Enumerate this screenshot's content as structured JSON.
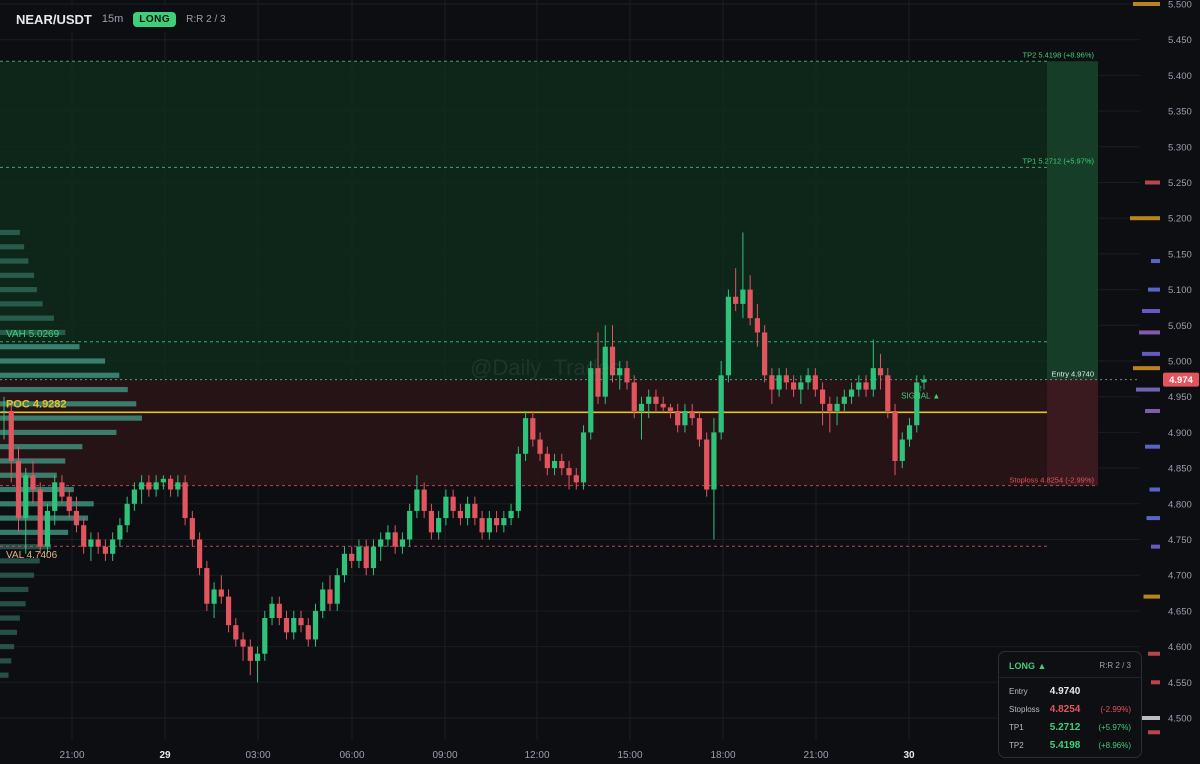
{
  "header": {
    "symbol": "NEAR/USDT",
    "timeframe": "15m",
    "side": "LONG",
    "rr": "R:R 2 / 3"
  },
  "watermark": "@Daily_Trades",
  "colors": {
    "background": "#0d0e12",
    "up": "#2fc27a",
    "down": "#e2555f",
    "poc": "#e4c229",
    "target_zone": "#0f2a1c",
    "stop_zone": "#2a1418",
    "profile": "#3f8f7c"
  },
  "levels": {
    "tp2": {
      "label": "TP2 5.4198 (+8.96%)",
      "value": 5.4198
    },
    "tp1": {
      "label": "TP1 5.2712 (+5.97%)",
      "value": 5.2712
    },
    "entry": {
      "label": "Entry 4.9740",
      "value": 4.974
    },
    "stoploss": {
      "label": "Stoploss 4.8254 (-2.99%)",
      "value": 4.8254
    },
    "vah": {
      "label": "VAH 5.0269",
      "value": 5.0269
    },
    "poc": {
      "label": "POC 4.9282",
      "value": 4.9282
    },
    "val": {
      "label": "VAL 4.7406",
      "value": 4.7406
    },
    "signal": "SIGNAL ▲"
  },
  "price_tag": "4.974",
  "panel": {
    "title": "LONG ▲",
    "rr": "R:R 2 / 3",
    "rows": [
      {
        "label": "Entry",
        "value": "4.9740",
        "pct": ""
      },
      {
        "label": "Stoploss",
        "value": "4.8254",
        "pct": "(-2.99%)"
      },
      {
        "label": "TP1",
        "value": "5.2712",
        "pct": "(+5.97%)"
      },
      {
        "label": "TP2",
        "value": "5.4198",
        "pct": "(+8.96%)"
      }
    ]
  },
  "chart_data": {
    "type": "candlestick",
    "symbol": "NEAR/USDT",
    "interval": "15m",
    "ylim": [
      4.5,
      5.5
    ],
    "y_ticks": [
      "5.500",
      "5.450",
      "5.400",
      "5.350",
      "5.300",
      "5.250",
      "5.200",
      "5.150",
      "5.100",
      "5.050",
      "5.000",
      "4.950",
      "4.900",
      "4.850",
      "4.800",
      "4.750",
      "4.700",
      "4.650",
      "4.600",
      "4.550",
      "4.500"
    ],
    "x_ticks": [
      "21:00",
      "29",
      "03:00",
      "06:00",
      "09:00",
      "12:00",
      "15:00",
      "18:00",
      "21:00",
      "30"
    ],
    "grid": true,
    "candles_ohlc": [
      [
        4.93,
        4.95,
        4.89,
        4.93
      ],
      [
        4.93,
        4.94,
        4.83,
        4.86
      ],
      [
        4.86,
        4.88,
        4.76,
        4.78
      ],
      [
        4.78,
        4.85,
        4.73,
        4.84
      ],
      [
        4.84,
        4.86,
        4.8,
        4.82
      ],
      [
        4.82,
        4.83,
        4.73,
        4.74
      ],
      [
        4.74,
        4.8,
        4.73,
        4.79
      ],
      [
        4.79,
        4.84,
        4.77,
        4.83
      ],
      [
        4.83,
        4.84,
        4.8,
        4.81
      ],
      [
        4.81,
        4.82,
        4.78,
        4.79
      ],
      [
        4.79,
        4.81,
        4.76,
        4.77
      ],
      [
        4.77,
        4.78,
        4.73,
        4.74
      ],
      [
        4.74,
        4.76,
        4.72,
        4.75
      ],
      [
        4.75,
        4.76,
        4.73,
        4.74
      ],
      [
        4.74,
        4.75,
        4.72,
        4.73
      ],
      [
        4.73,
        4.76,
        4.72,
        4.75
      ],
      [
        4.75,
        4.78,
        4.74,
        4.77
      ],
      [
        4.77,
        4.81,
        4.76,
        4.8
      ],
      [
        4.8,
        4.83,
        4.79,
        4.82
      ],
      [
        4.82,
        4.84,
        4.8,
        4.83
      ],
      [
        4.83,
        4.84,
        4.81,
        4.82
      ],
      [
        4.82,
        4.84,
        4.81,
        4.83
      ],
      [
        4.83,
        4.84,
        4.82,
        4.835
      ],
      [
        4.835,
        4.84,
        4.81,
        4.82
      ],
      [
        4.82,
        4.84,
        4.81,
        4.83
      ],
      [
        4.83,
        4.84,
        4.77,
        4.78
      ],
      [
        4.78,
        4.79,
        4.74,
        4.75
      ],
      [
        4.75,
        4.76,
        4.7,
        4.71
      ],
      [
        4.71,
        4.72,
        4.65,
        4.66
      ],
      [
        4.66,
        4.69,
        4.64,
        4.68
      ],
      [
        4.68,
        4.7,
        4.66,
        4.67
      ],
      [
        4.67,
        4.68,
        4.62,
        4.63
      ],
      [
        4.63,
        4.64,
        4.6,
        4.61
      ],
      [
        4.61,
        4.62,
        4.58,
        4.6
      ],
      [
        4.6,
        4.61,
        4.56,
        4.58
      ],
      [
        4.58,
        4.6,
        4.55,
        4.59
      ],
      [
        4.59,
        4.65,
        4.58,
        4.64
      ],
      [
        4.64,
        4.67,
        4.63,
        4.66
      ],
      [
        4.66,
        4.67,
        4.63,
        4.64
      ],
      [
        4.64,
        4.65,
        4.61,
        4.62
      ],
      [
        4.62,
        4.65,
        4.61,
        4.64
      ],
      [
        4.64,
        4.65,
        4.62,
        4.63
      ],
      [
        4.63,
        4.64,
        4.6,
        4.61
      ],
      [
        4.61,
        4.66,
        4.6,
        4.65
      ],
      [
        4.65,
        4.69,
        4.64,
        4.68
      ],
      [
        4.68,
        4.7,
        4.65,
        4.66
      ],
      [
        4.66,
        4.71,
        4.65,
        4.7
      ],
      [
        4.7,
        4.74,
        4.69,
        4.73
      ],
      [
        4.73,
        4.74,
        4.71,
        4.72
      ],
      [
        4.72,
        4.75,
        4.71,
        4.74
      ],
      [
        4.74,
        4.75,
        4.7,
        4.71
      ],
      [
        4.71,
        4.75,
        4.7,
        4.74
      ],
      [
        4.74,
        4.76,
        4.72,
        4.75
      ],
      [
        4.75,
        4.77,
        4.74,
        4.76
      ],
      [
        4.76,
        4.77,
        4.73,
        4.74
      ],
      [
        4.74,
        4.76,
        4.73,
        4.75
      ],
      [
        4.75,
        4.8,
        4.74,
        4.79
      ],
      [
        4.79,
        4.84,
        4.78,
        4.82
      ],
      [
        4.82,
        4.83,
        4.78,
        4.79
      ],
      [
        4.79,
        4.8,
        4.75,
        4.76
      ],
      [
        4.76,
        4.79,
        4.75,
        4.78
      ],
      [
        4.78,
        4.82,
        4.77,
        4.81
      ],
      [
        4.81,
        4.82,
        4.78,
        4.79
      ],
      [
        4.79,
        4.8,
        4.77,
        4.78
      ],
      [
        4.78,
        4.81,
        4.77,
        4.8
      ],
      [
        4.8,
        4.81,
        4.77,
        4.78
      ],
      [
        4.78,
        4.79,
        4.75,
        4.76
      ],
      [
        4.76,
        4.79,
        4.75,
        4.78
      ],
      [
        4.78,
        4.79,
        4.76,
        4.77
      ],
      [
        4.77,
        4.79,
        4.76,
        4.78
      ],
      [
        4.78,
        4.8,
        4.77,
        4.79
      ],
      [
        4.79,
        4.88,
        4.78,
        4.87
      ],
      [
        4.87,
        4.93,
        4.86,
        4.92
      ],
      [
        4.92,
        4.93,
        4.88,
        4.89
      ],
      [
        4.89,
        4.9,
        4.86,
        4.87
      ],
      [
        4.87,
        4.88,
        4.84,
        4.85
      ],
      [
        4.85,
        4.87,
        4.84,
        4.86
      ],
      [
        4.86,
        4.87,
        4.84,
        4.85
      ],
      [
        4.85,
        4.86,
        4.82,
        4.84
      ],
      [
        4.84,
        4.85,
        4.82,
        4.83
      ],
      [
        4.83,
        4.91,
        4.82,
        4.9
      ],
      [
        4.9,
        5.0,
        4.89,
        4.99
      ],
      [
        4.99,
        5.04,
        4.94,
        4.95
      ],
      [
        4.95,
        5.05,
        4.94,
        5.02
      ],
      [
        5.02,
        5.05,
        4.97,
        4.98
      ],
      [
        4.98,
        5.0,
        4.96,
        4.99
      ],
      [
        4.99,
        5.0,
        4.96,
        4.97
      ],
      [
        4.97,
        4.98,
        4.92,
        4.93
      ],
      [
        4.93,
        4.95,
        4.89,
        4.94
      ],
      [
        4.94,
        4.96,
        4.92,
        4.95
      ],
      [
        4.95,
        4.96,
        4.93,
        4.94
      ],
      [
        4.94,
        4.95,
        4.93,
        4.935
      ],
      [
        4.935,
        4.94,
        4.92,
        4.93
      ],
      [
        4.93,
        4.94,
        4.9,
        4.91
      ],
      [
        4.91,
        4.94,
        4.9,
        4.93
      ],
      [
        4.93,
        4.94,
        4.91,
        4.92
      ],
      [
        4.92,
        4.93,
        4.88,
        4.89
      ],
      [
        4.89,
        4.9,
        4.81,
        4.82
      ],
      [
        4.82,
        4.92,
        4.75,
        4.9
      ],
      [
        4.9,
        5.0,
        4.89,
        4.98
      ],
      [
        4.98,
        5.1,
        4.97,
        5.09
      ],
      [
        5.09,
        5.13,
        5.07,
        5.08
      ],
      [
        5.08,
        5.18,
        5.06,
        5.1
      ],
      [
        5.1,
        5.12,
        5.05,
        5.06
      ],
      [
        5.06,
        5.08,
        5.02,
        5.04
      ],
      [
        5.04,
        5.05,
        4.97,
        4.98
      ],
      [
        4.98,
        4.99,
        4.94,
        4.96
      ],
      [
        4.96,
        4.99,
        4.95,
        4.98
      ],
      [
        4.98,
        4.99,
        4.96,
        4.97
      ],
      [
        4.97,
        4.98,
        4.95,
        4.96
      ],
      [
        4.96,
        4.98,
        4.94,
        4.97
      ],
      [
        4.97,
        4.99,
        4.96,
        4.98
      ],
      [
        4.98,
        4.99,
        4.95,
        4.96
      ],
      [
        4.96,
        4.97,
        4.91,
        4.94
      ],
      [
        4.94,
        4.95,
        4.9,
        4.93
      ],
      [
        4.93,
        4.95,
        4.91,
        4.94
      ],
      [
        4.94,
        4.96,
        4.93,
        4.95
      ],
      [
        4.95,
        4.97,
        4.94,
        4.96
      ],
      [
        4.96,
        4.98,
        4.95,
        4.97
      ],
      [
        4.97,
        4.98,
        4.95,
        4.96
      ],
      [
        4.96,
        5.03,
        4.95,
        4.99
      ],
      [
        4.99,
        5.01,
        4.96,
        4.98
      ],
      [
        4.98,
        4.99,
        4.92,
        4.93
      ],
      [
        4.93,
        4.94,
        4.84,
        4.86
      ],
      [
        4.86,
        4.9,
        4.85,
        4.89
      ],
      [
        4.89,
        4.92,
        4.88,
        4.91
      ],
      [
        4.91,
        4.98,
        4.9,
        4.97
      ],
      [
        4.97,
        4.98,
        4.96,
        4.974
      ]
    ],
    "volume_profile": {
      "value_area_high": 5.0269,
      "point_of_control": 4.9282,
      "value_area_low": 4.7406,
      "bins": [
        [
          5.18,
          0.14
        ],
        [
          5.16,
          0.17
        ],
        [
          5.14,
          0.2
        ],
        [
          5.12,
          0.24
        ],
        [
          5.1,
          0.26
        ],
        [
          5.08,
          0.3
        ],
        [
          5.06,
          0.38
        ],
        [
          5.04,
          0.46
        ],
        [
          5.02,
          0.56
        ],
        [
          5.0,
          0.74
        ],
        [
          4.98,
          0.84
        ],
        [
          4.96,
          0.9
        ],
        [
          4.94,
          0.96
        ],
        [
          4.92,
          1.0
        ],
        [
          4.9,
          0.82
        ],
        [
          4.88,
          0.58
        ],
        [
          4.86,
          0.46
        ],
        [
          4.84,
          0.4
        ],
        [
          4.82,
          0.52
        ],
        [
          4.8,
          0.66
        ],
        [
          4.78,
          0.62
        ],
        [
          4.76,
          0.48
        ],
        [
          4.74,
          0.36
        ],
        [
          4.72,
          0.28
        ],
        [
          4.7,
          0.24
        ],
        [
          4.68,
          0.2
        ],
        [
          4.66,
          0.18
        ],
        [
          4.64,
          0.14
        ],
        [
          4.62,
          0.12
        ],
        [
          4.6,
          0.1
        ],
        [
          4.58,
          0.08
        ],
        [
          4.56,
          0.06
        ]
      ]
    }
  }
}
